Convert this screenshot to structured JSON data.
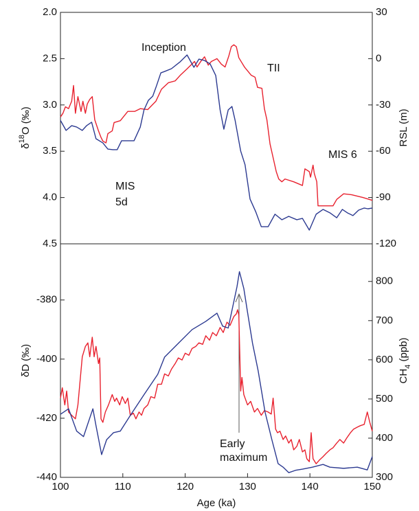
{
  "chart_data": [
    {
      "type": "line",
      "ylabel": [
        "δ",
        "18",
        "O (‰)"
      ],
      "y2label": "RSL (m)",
      "xlim": [
        100,
        150
      ],
      "ylim": [
        4.5,
        2.0
      ],
      "yticks": [
        {
          "value": 2,
          "label": "2.0"
        },
        2.5,
        {
          "value": 3,
          "label": "3.0"
        },
        3.5,
        {
          "value": 4,
          "label": "4.0"
        },
        4.5
      ],
      "y2lim": [
        -120,
        30
      ],
      "y2ticks": [
        30,
        0,
        -30,
        -60,
        -90,
        -120
      ],
      "annotations": [
        "Inception",
        "TII",
        [
          "MIS",
          "5d"
        ],
        "MIS 6"
      ],
      "series": [
        {
          "color": "#e8212e",
          "axis": "y",
          "x": [
            100.0,
            100.4,
            100.8,
            101.3,
            101.8,
            102.1,
            102.4,
            102.8,
            103.3,
            103.6,
            104.0,
            104.3,
            104.7,
            105.1,
            105.5,
            106.1,
            106.5,
            106.8,
            107.3,
            107.6,
            108.3,
            108.6,
            109.6,
            110.8,
            111.9,
            112.8,
            114.0,
            115.3,
            116.2,
            117.3,
            118.4,
            119.2,
            120.3,
            121.5,
            121.9,
            122.5,
            123.1,
            123.7,
            124.2,
            125.1,
            125.8,
            126.4,
            127.0,
            127.4,
            127.8,
            128.2,
            128.6,
            129.5,
            130.6,
            131.2,
            131.6,
            132.3,
            132.7,
            133.1,
            133.6,
            134.1,
            134.6,
            135.0,
            135.5,
            136.0,
            137.4,
            138.8,
            139.2,
            139.9,
            140.1,
            140.5,
            140.7,
            141.1,
            141.3,
            142.4,
            143.7,
            144.3,
            145.4,
            146.7,
            148.5,
            150.0
          ],
          "values": [
            3.13,
            3.09,
            3.02,
            3.04,
            2.96,
            2.79,
            3.09,
            2.91,
            3.07,
            2.96,
            3.09,
            2.99,
            2.94,
            2.91,
            3.16,
            3.28,
            3.35,
            3.39,
            3.41,
            3.31,
            3.28,
            3.19,
            3.17,
            3.07,
            3.07,
            3.04,
            3.05,
            2.96,
            2.83,
            2.76,
            2.74,
            2.68,
            2.61,
            2.53,
            2.59,
            2.53,
            2.48,
            2.57,
            2.53,
            2.5,
            2.56,
            2.59,
            2.47,
            2.37,
            2.35,
            2.37,
            2.49,
            2.59,
            2.68,
            2.7,
            2.81,
            2.82,
            3.04,
            3.16,
            3.42,
            3.57,
            3.72,
            3.8,
            3.83,
            3.8,
            3.83,
            3.87,
            3.69,
            3.72,
            3.78,
            3.65,
            3.74,
            3.83,
            4.09,
            4.09,
            4.09,
            4.02,
            3.96,
            3.97,
            4.0,
            4.03
          ]
        },
        {
          "color": "#2b3990",
          "axis": "y2",
          "x": [
            100.0,
            100.9,
            101.8,
            102.6,
            103.5,
            104.2,
            105.0,
            105.7,
            106.8,
            107.6,
            108.4,
            109.1,
            109.8,
            110.8,
            111.8,
            112.8,
            113.4,
            114.1,
            114.8,
            115.4,
            116.1,
            116.7,
            117.8,
            119.2,
            120.3,
            121.4,
            122.2,
            123.1,
            124.0,
            124.9,
            125.6,
            126.2,
            126.9,
            127.5,
            128.0,
            128.9,
            129.6,
            130.4,
            131.3,
            132.2,
            133.3,
            134.4,
            135.5,
            136.6,
            137.9,
            138.8,
            139.9,
            141.0,
            142.1,
            143.2,
            144.3,
            145.2,
            146.0,
            146.9,
            147.8,
            148.7,
            149.3,
            150.0
          ],
          "values": [
            -40,
            -46.5,
            -43.4,
            -44.3,
            -46.5,
            -43.4,
            -41.2,
            -51.9,
            -54.6,
            -58.6,
            -59,
            -59,
            -53.2,
            -53.2,
            -53.2,
            -44.3,
            -33.2,
            -27,
            -24.3,
            -17.6,
            -9.2,
            -8.3,
            -6.5,
            -2,
            2.4,
            -5.6,
            -0.3,
            -1.2,
            -3.4,
            -10.9,
            -33.2,
            -45.7,
            -33.2,
            -31,
            -39.9,
            -59.9,
            -68.8,
            -91,
            -99.1,
            -108.9,
            -108.9,
            -100.8,
            -104.4,
            -102.2,
            -104.4,
            -103.5,
            -111.1,
            -100.8,
            -97.7,
            -99.9,
            -103.1,
            -97.7,
            -99.9,
            -101.7,
            -98.2,
            -96.8,
            -97.3,
            -96.8
          ]
        }
      ]
    },
    {
      "type": "line",
      "ylabel": "δD (‰)",
      "y2label": [
        "CH",
        "4",
        " (ppb)"
      ],
      "xlabel": "Age (ka)",
      "xlim": [
        100,
        150
      ],
      "xticks": [
        100,
        110,
        120,
        130,
        140,
        150
      ],
      "ylim": [
        -440,
        -361
      ],
      "yticks": [
        -440,
        -420,
        -400,
        -380
      ],
      "y2lim": [
        300,
        896
      ],
      "y2ticks": [
        300,
        400,
        500,
        600,
        700,
        800
      ],
      "annotations": [
        [
          "Early",
          "maximum"
        ]
      ],
      "series": [
        {
          "color": "#e8212e",
          "axis": "y",
          "x": [
            100.0,
            100.3,
            100.7,
            101.0,
            101.3,
            101.8,
            102.4,
            102.8,
            103.1,
            103.5,
            104.0,
            104.4,
            104.7,
            105.1,
            105.4,
            105.7,
            106.1,
            106.3,
            106.5,
            106.8,
            107.2,
            107.7,
            108.3,
            108.7,
            109.0,
            109.5,
            109.9,
            110.4,
            110.8,
            111.2,
            111.7,
            112.1,
            112.6,
            113.0,
            113.4,
            114.0,
            114.5,
            115.1,
            115.6,
            116.2,
            116.7,
            117.3,
            117.8,
            118.4,
            118.9,
            119.5,
            120.0,
            120.6,
            121.1,
            121.7,
            122.2,
            122.8,
            123.3,
            123.9,
            124.4,
            125.0,
            125.6,
            126.1,
            126.7,
            127.2,
            127.8,
            128.2,
            128.4,
            128.6,
            128.9,
            129.1,
            129.4,
            130.0,
            130.5,
            131.1,
            131.6,
            132.2,
            132.7,
            133.3,
            133.8,
            134.1,
            134.5,
            134.8,
            135.2,
            135.7,
            136.1,
            136.6,
            137.0,
            137.4,
            137.9,
            138.3,
            138.8,
            139.2,
            139.5,
            139.9,
            140.2,
            140.5,
            141.0,
            141.5,
            142.1,
            142.6,
            143.2,
            143.7,
            144.3,
            144.8,
            145.4,
            145.9,
            146.5,
            147.0,
            147.6,
            148.1,
            148.7,
            149.2,
            149.6,
            150.0
          ],
          "values": [
            -413.2,
            -409.7,
            -415.5,
            -410.8,
            -417.9,
            -419,
            -420.2,
            -415.5,
            -408.5,
            -399.2,
            -395.7,
            -394.5,
            -399.2,
            -392.6,
            -399.2,
            -395.7,
            -401.5,
            -399.6,
            -420.2,
            -421.4,
            -417.9,
            -415.5,
            -412,
            -414.3,
            -413.2,
            -415.5,
            -412.7,
            -415,
            -413.2,
            -419,
            -418.3,
            -420.2,
            -417.9,
            -419,
            -416.7,
            -415.5,
            -412.7,
            -413.2,
            -408.5,
            -408.5,
            -405,
            -405.7,
            -403.4,
            -401.5,
            -399.6,
            -400.3,
            -398,
            -398.7,
            -396.4,
            -395.7,
            -394.5,
            -395,
            -392.1,
            -393.6,
            -391,
            -392.1,
            -389.3,
            -391,
            -387.5,
            -388.6,
            -385.6,
            -384.7,
            -383.3,
            -385.1,
            -410.8,
            -406.2,
            -412,
            -415.5,
            -414.3,
            -417.9,
            -416.7,
            -419,
            -417.4,
            -417.9,
            -418.6,
            -413.2,
            -423.7,
            -424.9,
            -424.4,
            -427.2,
            -426,
            -428.4,
            -427.2,
            -430.7,
            -429.5,
            -427.2,
            -431.4,
            -430.7,
            -433.7,
            -434.7,
            -424.9,
            -433.7,
            -435.4,
            -434.2,
            -433,
            -431.9,
            -430.7,
            -430,
            -428.4,
            -427.2,
            -428.4,
            -426.7,
            -424.9,
            -423.7,
            -423,
            -422.5,
            -422.1,
            -417.9,
            -421.4,
            -424.4
          ]
        },
        {
          "color": "#2b3990",
          "axis": "y2",
          "x": [
            100.0,
            101.3,
            102.6,
            103.7,
            105.2,
            105.7,
            106.6,
            107.4,
            108.5,
            109.6,
            111.2,
            113.4,
            115.6,
            116.7,
            118.9,
            121.1,
            123.3,
            125.1,
            126.0,
            126.9,
            128.3,
            128.7,
            129.4,
            130.0,
            130.8,
            131.7,
            132.8,
            133.9,
            134.9,
            135.7,
            136.6,
            137.7,
            138.8,
            140.4,
            142.1,
            143.2,
            145.4,
            147.6,
            149.2,
            150.0
          ],
          "values": [
            461,
            475,
            418,
            404,
            475,
            432,
            358,
            396,
            414,
            418,
            458,
            511,
            563,
            607,
            642,
            677,
            698,
            719,
            686,
            681,
            786,
            825,
            782,
            721,
            642,
            572,
            467,
            396,
            335,
            326,
            312,
            318,
            321,
            326,
            333,
            326,
            323,
            326,
            319,
            353
          ]
        }
      ]
    }
  ]
}
